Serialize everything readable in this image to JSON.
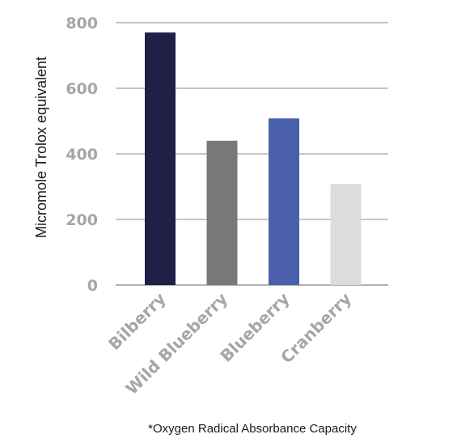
{
  "chart_data": {
    "type": "bar",
    "categories": [
      "Bilberry",
      "Wild Blueberry",
      "Blueberry",
      "Cranberry"
    ],
    "values": [
      770,
      440,
      508,
      308
    ],
    "colors": [
      "#1f1f47",
      "#787878",
      "#4a60ad",
      "#dcdcdc"
    ],
    "ylabel": "Micromole Trolox equivalent",
    "xlabel": "",
    "title": "",
    "ylim": [
      0,
      800
    ],
    "yticks": [
      0,
      200,
      400,
      600,
      800
    ],
    "grid": true,
    "grid_color": "#b3b3b3",
    "tick_color": "#a6a6a6",
    "footnote": "*Oxygen Radical Absorbance Capacity"
  }
}
